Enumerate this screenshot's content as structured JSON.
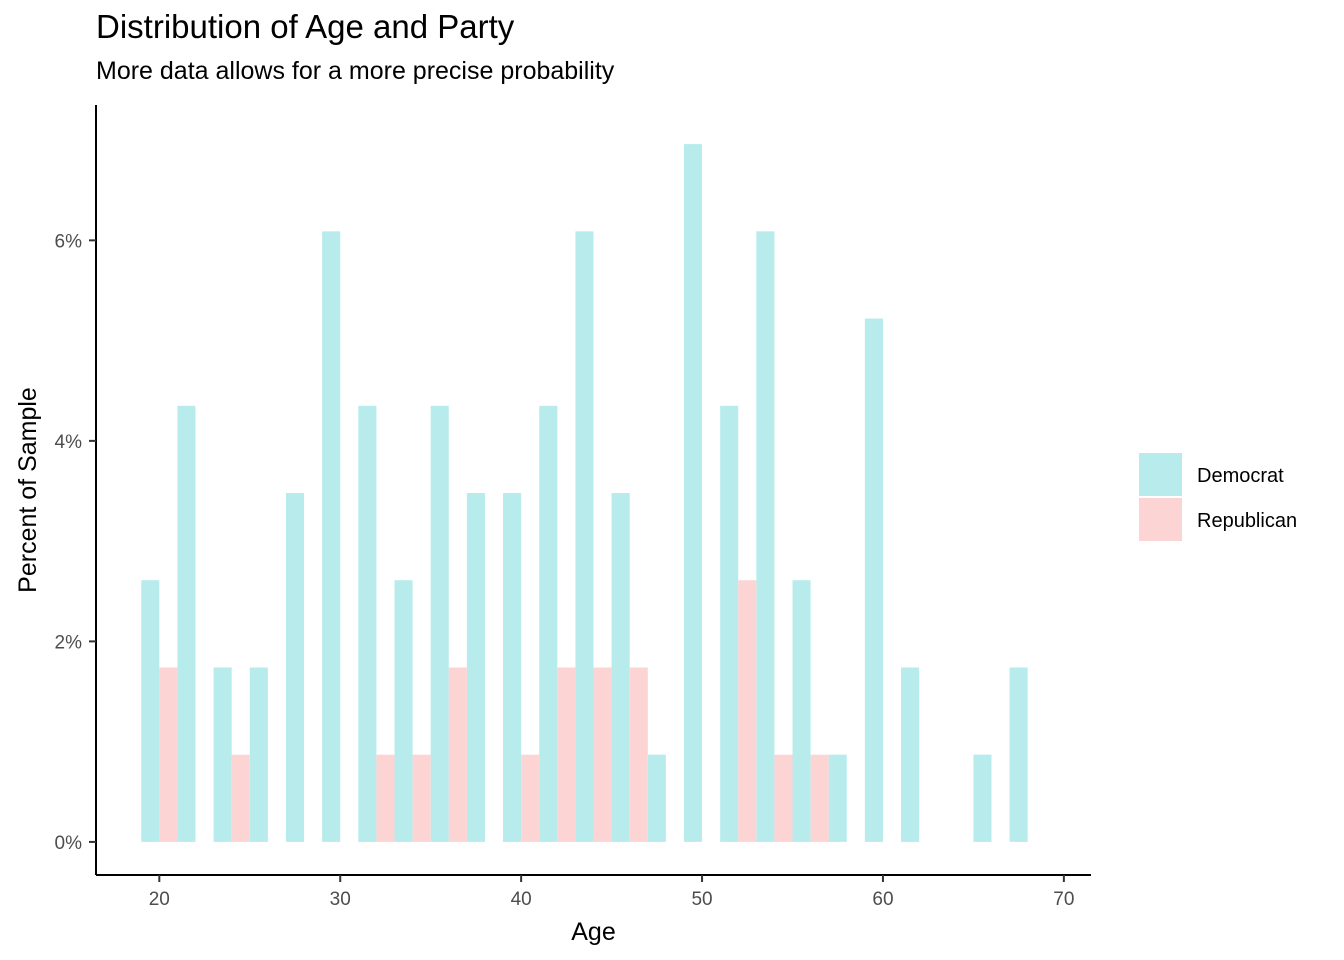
{
  "chart_data": {
    "type": "bar",
    "title": "Distribution of Age and Party",
    "subtitle": "More data allows for a more precise probability",
    "xlabel": "Age",
    "ylabel": "Percent of Sample",
    "xlim": [
      16.5,
      71.5
    ],
    "ylim": [
      -0.33,
      7.35
    ],
    "x_ticks": [
      20,
      30,
      40,
      50,
      60,
      70
    ],
    "y_ticks": [
      0,
      2,
      4,
      6
    ],
    "y_tick_labels": [
      "0%",
      "2%",
      "4%",
      "6%"
    ],
    "bin_width": 2,
    "grid": false,
    "legend_position": "right",
    "series": [
      {
        "name": "Democrat",
        "color": "#b8ecec",
        "bins": [
          {
            "x": 20,
            "value": 2.61
          },
          {
            "x": 22,
            "value": 4.35
          },
          {
            "x": 24,
            "value": 1.74
          },
          {
            "x": 26,
            "value": 1.74
          },
          {
            "x": 28,
            "value": 3.48
          },
          {
            "x": 30,
            "value": 6.09
          },
          {
            "x": 32,
            "value": 4.35
          },
          {
            "x": 34,
            "value": 2.61
          },
          {
            "x": 36,
            "value": 4.35
          },
          {
            "x": 38,
            "value": 3.48
          },
          {
            "x": 40,
            "value": 3.48
          },
          {
            "x": 42,
            "value": 4.35
          },
          {
            "x": 44,
            "value": 6.09
          },
          {
            "x": 46,
            "value": 3.48
          },
          {
            "x": 48,
            "value": 0.87
          },
          {
            "x": 50,
            "value": 6.96
          },
          {
            "x": 52,
            "value": 4.35
          },
          {
            "x": 54,
            "value": 6.09
          },
          {
            "x": 56,
            "value": 2.61
          },
          {
            "x": 58,
            "value": 0.87
          },
          {
            "x": 60,
            "value": 5.22
          },
          {
            "x": 62,
            "value": 1.74
          },
          {
            "x": 66,
            "value": 0.87
          },
          {
            "x": 68,
            "value": 1.74
          }
        ]
      },
      {
        "name": "Republican",
        "color": "#fcd4d4",
        "bins": [
          {
            "x": 20,
            "value": 1.74
          },
          {
            "x": 24,
            "value": 0.87
          },
          {
            "x": 32,
            "value": 0.87
          },
          {
            "x": 34,
            "value": 0.87
          },
          {
            "x": 36,
            "value": 1.74
          },
          {
            "x": 40,
            "value": 0.87
          },
          {
            "x": 42,
            "value": 1.74
          },
          {
            "x": 44,
            "value": 1.74
          },
          {
            "x": 46,
            "value": 1.74
          },
          {
            "x": 52,
            "value": 2.61
          },
          {
            "x": 54,
            "value": 0.87
          },
          {
            "x": 56,
            "value": 0.87
          }
        ]
      }
    ]
  }
}
